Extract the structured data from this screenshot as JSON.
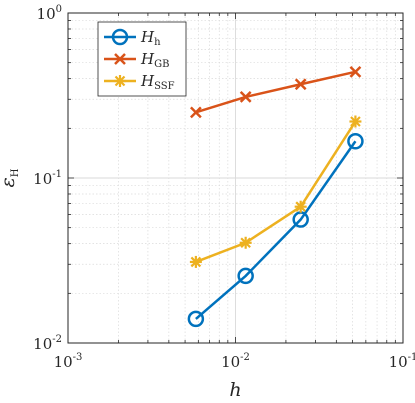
{
  "chart_data": {
    "type": "line",
    "xscale": "log",
    "yscale": "log",
    "xlim": [
      0.001,
      0.1
    ],
    "ylim": [
      0.01,
      1
    ],
    "xlabel": "h",
    "ylabel_main": "ε",
    "ylabel_sub": "H",
    "grid": true,
    "legend_position": "top-left",
    "x_ticks": [
      {
        "base": "10",
        "exp": "-3",
        "value": 0.001
      },
      {
        "base": "10",
        "exp": "-2",
        "value": 0.01
      },
      {
        "base": "10",
        "exp": "-1",
        "value": 0.1
      }
    ],
    "y_ticks": [
      {
        "base": "10",
        "exp": "-2",
        "value": 0.01
      },
      {
        "base": "10",
        "exp": "-1",
        "value": 0.1
      },
      {
        "base": "10",
        "exp": "0",
        "value": 1
      }
    ],
    "x": [
      0.0058,
      0.0115,
      0.0245,
      0.052
    ],
    "series": [
      {
        "name": "H",
        "name_sub": "h",
        "marker": "circle",
        "color": "#0072BD",
        "values": [
          0.014,
          0.0255,
          0.056,
          0.167
        ]
      },
      {
        "name": "H",
        "name_sub": "GB",
        "marker": "x",
        "color": "#D95319",
        "values": [
          0.25,
          0.31,
          0.37,
          0.44
        ]
      },
      {
        "name": "H",
        "name_sub": "SSF",
        "marker": "star",
        "color": "#EDB120",
        "values": [
          0.031,
          0.0405,
          0.067,
          0.22
        ]
      }
    ]
  }
}
